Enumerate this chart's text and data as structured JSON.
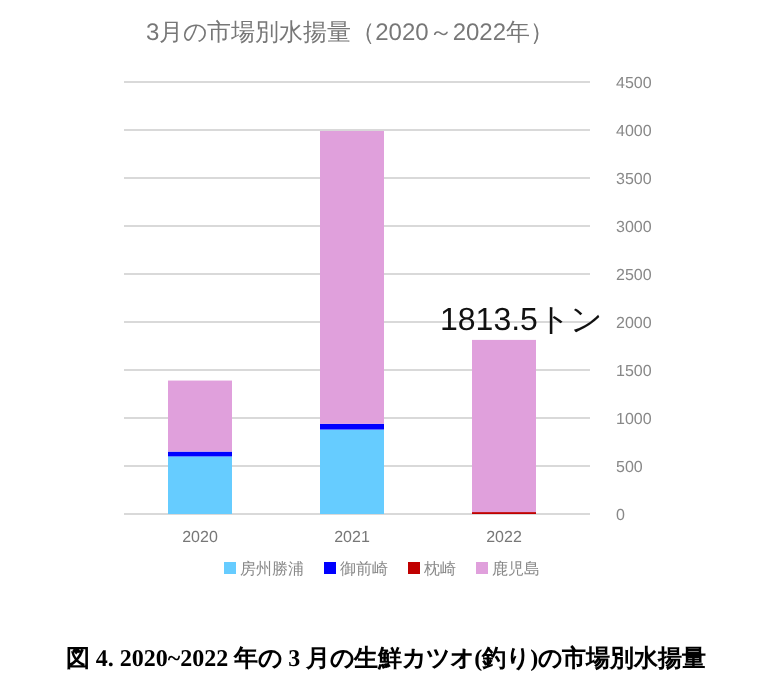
{
  "chart_data": {
    "type": "bar",
    "stacked": true,
    "title": "3月の市場別水揚量（2020～2022年）",
    "categories": [
      "2020",
      "2021",
      "2022"
    ],
    "series": [
      {
        "name": "房州勝浦",
        "color": "#66ccff",
        "values": [
          600,
          880,
          0
        ]
      },
      {
        "name": "御前崎",
        "color": "#0000ff",
        "values": [
          50,
          60,
          0
        ]
      },
      {
        "name": "枕崎",
        "color": "#c00000",
        "values": [
          0,
          0,
          20
        ]
      },
      {
        "name": "鹿児島",
        "color": "#e0a0dc",
        "values": [
          740,
          3050,
          1793.5
        ]
      }
    ],
    "ylim": [
      0,
      4500
    ],
    "yticks": [
      0,
      500,
      1000,
      1500,
      2000,
      2500,
      3000,
      3500,
      4000,
      4500
    ],
    "grid": "y",
    "legend": "bottom",
    "annotations": [
      {
        "text": "1813.5トン",
        "x": "2022",
        "y": 1813.5
      },
      "図 4. 2020~2022 年の 3 月の生鮮カツオ(釣り)の市場別水揚量"
    ]
  }
}
